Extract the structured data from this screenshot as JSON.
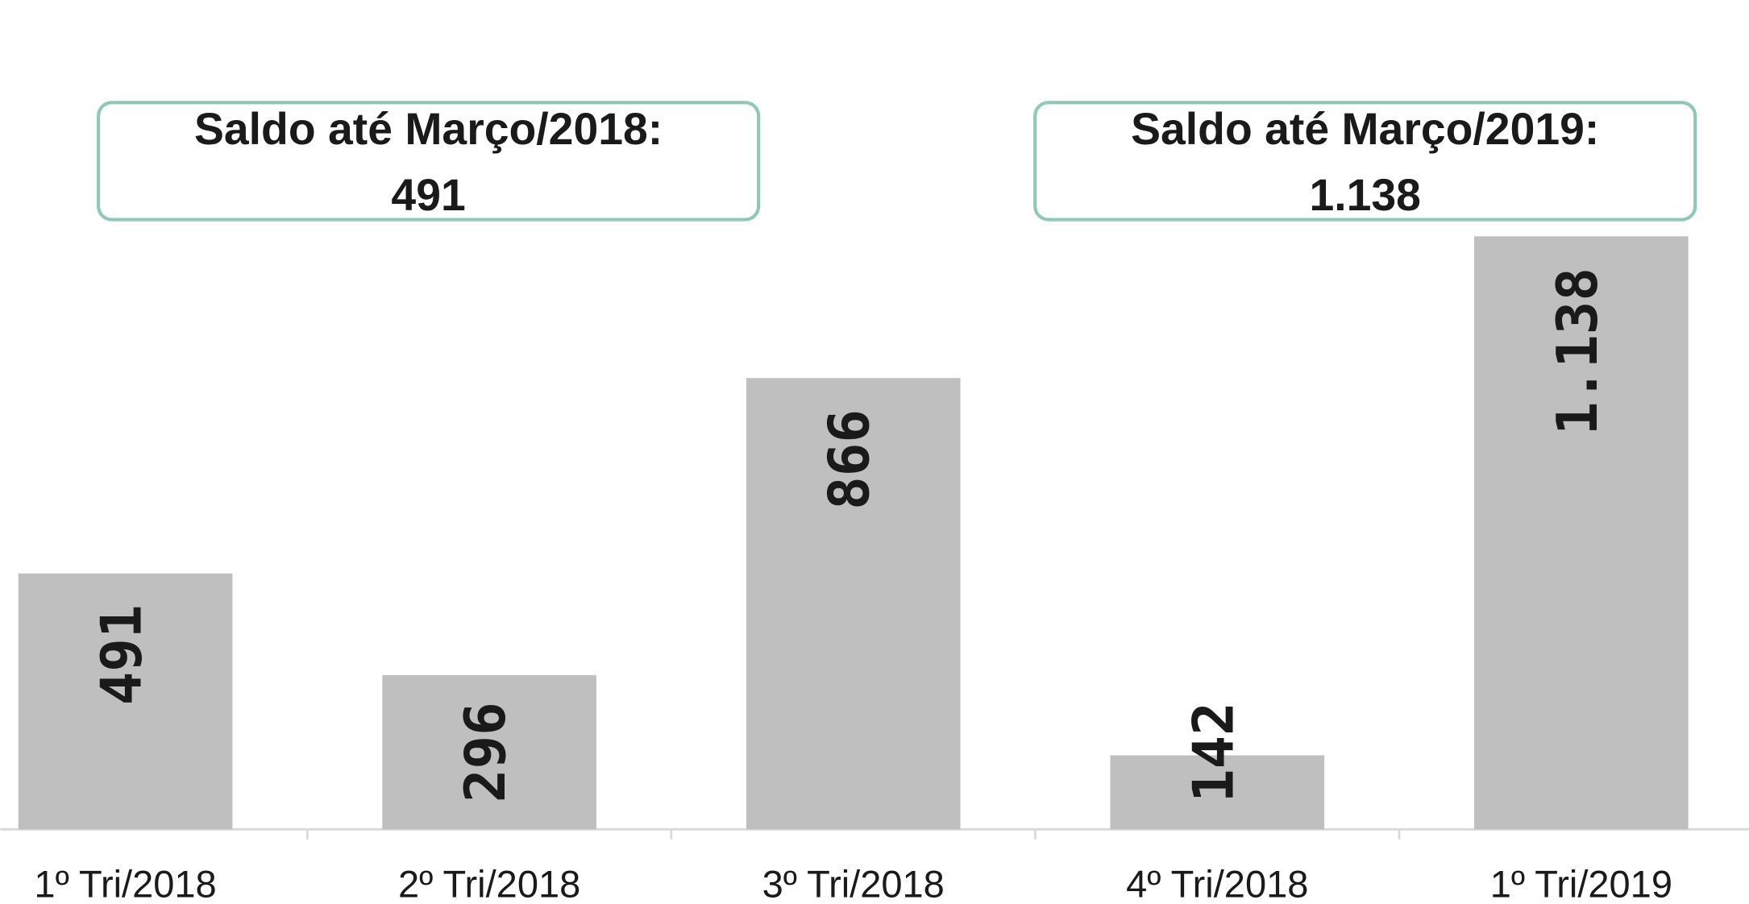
{
  "chart_data": {
    "type": "bar",
    "categories": [
      "1º Tri/2018",
      "2º Tri/2018",
      "3º Tri/2018",
      "4º Tri/2018",
      "1º Tri/2019"
    ],
    "values": [
      491,
      296,
      866,
      142,
      1138
    ],
    "value_labels": [
      "491",
      "296",
      "866",
      "142",
      "1.138"
    ],
    "color": "#bfbfbf",
    "annotations": [
      {
        "lines": [
          "Saldo até Março/2018:",
          "491"
        ]
      },
      {
        "lines": [
          "Saldo até Março/2019:",
          "1.138"
        ]
      }
    ]
  }
}
